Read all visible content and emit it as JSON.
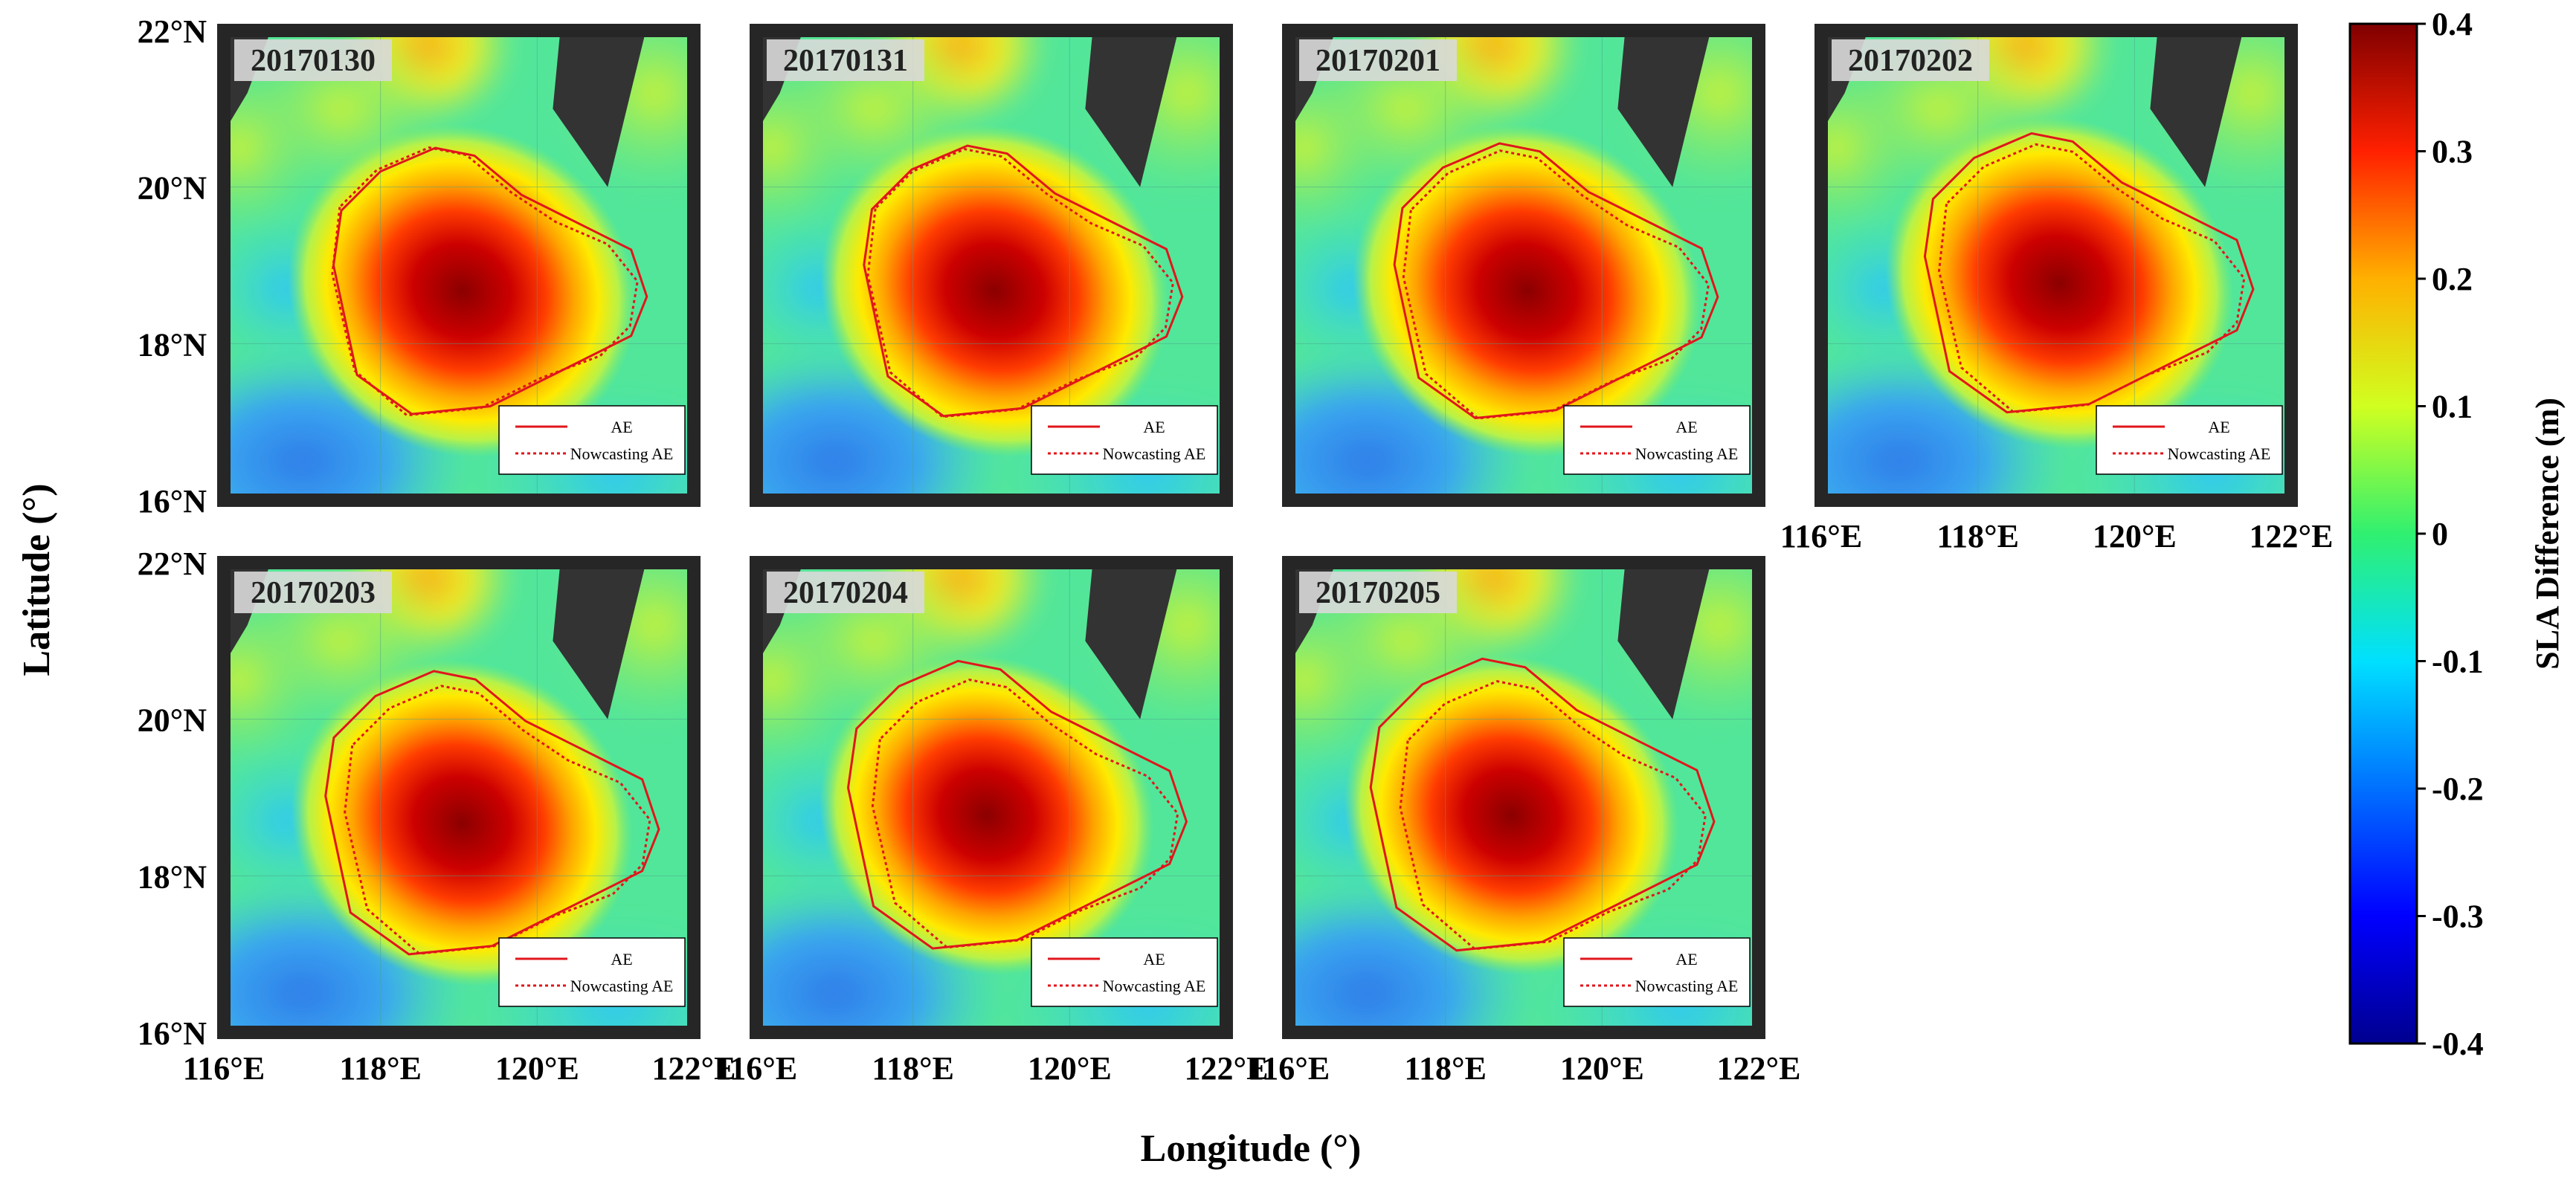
{
  "chart_data": {
    "type": "heatmap",
    "figure": "SLA difference maps of an anticyclonic eddy (AE) versus nowcasting AE",
    "xlabel": "Longitude (°)",
    "ylabel": "Latitude (°)",
    "xlim": [
      116,
      122
    ],
    "ylim": [
      16,
      22
    ],
    "x_ticks": [
      "116°E",
      "118°E",
      "120°E",
      "122°E"
    ],
    "y_ticks": [
      "16°N",
      "18°N",
      "20°N",
      "22°N"
    ],
    "grid": true,
    "colorbar": {
      "label": "SLA Difference (m)",
      "min": -0.4,
      "max": 0.4,
      "ticks": [
        "0.4",
        "0.3",
        "0.2",
        "0.1",
        "0",
        "-0.1",
        "-0.2",
        "-0.3",
        "-0.4"
      ],
      "colormap": "jet"
    },
    "legend": {
      "placement": "bottom-right",
      "entries": [
        {
          "label": "AE",
          "style": "solid",
          "color": "#e0161b"
        },
        {
          "label": "Nowcasting AE",
          "style": "dotted",
          "color": "#e0161b"
        }
      ]
    },
    "panels": [
      {
        "date": "20170130",
        "eddy_center": [
          119.0,
          18.7
        ],
        "eddy_max": 0.4
      },
      {
        "date": "20170131",
        "eddy_center": [
          119.0,
          18.7
        ],
        "eddy_max": 0.4
      },
      {
        "date": "20170201",
        "eddy_center": [
          119.0,
          18.7
        ],
        "eddy_max": 0.4
      },
      {
        "date": "20170202",
        "eddy_center": [
          119.0,
          18.8
        ],
        "eddy_max": 0.4
      },
      {
        "date": "20170203",
        "eddy_center": [
          119.0,
          18.7
        ],
        "eddy_max": 0.38
      },
      {
        "date": "20170204",
        "eddy_center": [
          118.9,
          18.8
        ],
        "eddy_max": 0.36
      },
      {
        "date": "20170205",
        "eddy_center": [
          118.8,
          18.8
        ],
        "eddy_max": 0.36
      }
    ]
  }
}
